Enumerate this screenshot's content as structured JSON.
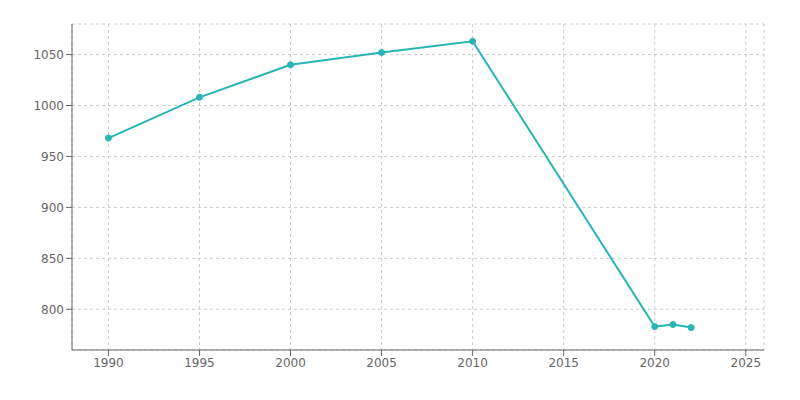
{
  "chart_data": {
    "type": "line",
    "x": [
      1990,
      1995,
      2000,
      2005,
      2010,
      2020,
      2021,
      2022
    ],
    "values": [
      968,
      1008,
      1040,
      1052,
      1063,
      783,
      785,
      782
    ],
    "color": "#2ab5b5",
    "marker": "circle",
    "xlim": [
      1988,
      2026
    ],
    "ylim": [
      760,
      1080
    ],
    "xticks": [
      1990,
      1995,
      2000,
      2005,
      2010,
      2015,
      2020,
      2025
    ],
    "yticks": [
      800,
      850,
      900,
      950,
      1000,
      1050
    ],
    "grid": true
  }
}
